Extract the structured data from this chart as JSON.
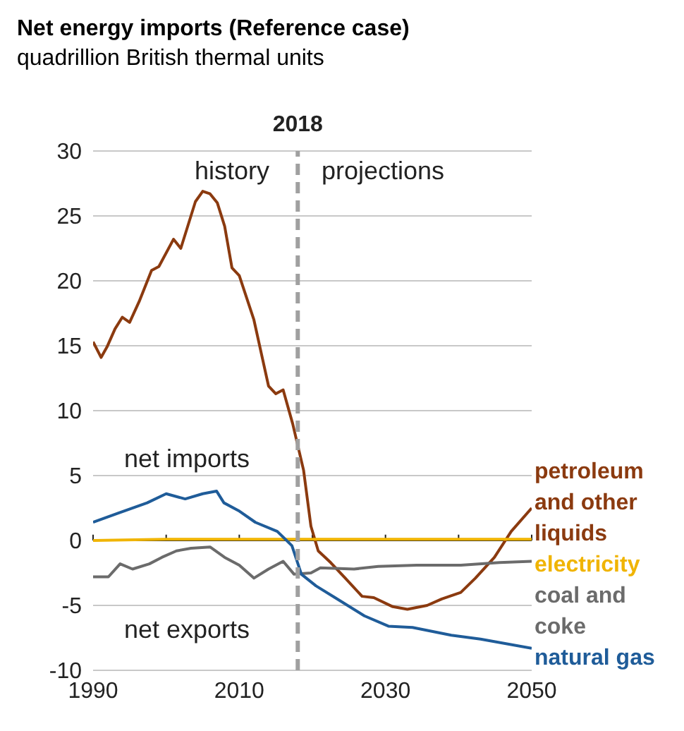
{
  "chart_data": {
    "type": "line",
    "title": "Net energy imports (Reference case)",
    "subtitle": "quadrillion British thermal units",
    "xlim": [
      1990,
      2050
    ],
    "xticks": [
      1990,
      {
        "value": 2000,
        "label": null
      },
      2010,
      {
        "value": 2020,
        "label": null
      },
      2030,
      {
        "value": 2040,
        "label": null
      },
      2050
    ],
    "ylim": [
      -10,
      30
    ],
    "yticks": [
      -10,
      -5,
      0,
      5,
      10,
      15,
      20,
      25,
      30
    ],
    "grid": "y",
    "legend": "right",
    "line_style": "solid",
    "marker": "none",
    "ref_lines": [
      {
        "axis": "x",
        "value": 2018,
        "label": "2018",
        "color": "#a0a0a0",
        "line_style": "dashed"
      }
    ],
    "annotations": [
      "history",
      "projections",
      "net imports",
      "net exports"
    ],
    "series": [
      {
        "name": "petroleum and other liquids",
        "color": "#8b3a0f",
        "x": [
          1990,
          1991.1,
          1991.9,
          1993,
          1994,
          1995,
          1996.3,
          1998,
          1999,
          2001,
          2002,
          2004,
          2005,
          2006,
          2007,
          2008,
          2009,
          2010,
          2012,
          2014,
          2015,
          2016,
          2017.3,
          2018.8,
          2019.8,
          2020.8,
          2022.5,
          2024.5,
          2026.8,
          2028.4,
          2031,
          2033,
          2035.7,
          2037.7,
          2040.3,
          2042.3,
          2044.9,
          2047.2,
          2050
        ],
        "values": [
          15.3,
          14.1,
          14.9,
          16.3,
          17.2,
          16.8,
          18.4,
          20.8,
          21.1,
          23.2,
          22.5,
          26.1,
          26.9,
          26.7,
          26.0,
          24.2,
          21.0,
          20.4,
          17.0,
          11.9,
          11.3,
          11.6,
          9.0,
          5.4,
          1.1,
          -0.8,
          -1.7,
          -2.9,
          -4.3,
          -4.4,
          -5.1,
          -5.3,
          -5.0,
          -4.5,
          -4.0,
          -2.9,
          -1.3,
          0.7,
          2.5
        ]
      },
      {
        "name": "electricity",
        "color": "#f0b400",
        "x": [
          1990,
          2000,
          2010,
          2020,
          2030,
          2040,
          2050
        ],
        "values": [
          0.0,
          0.1,
          0.1,
          0.1,
          0.1,
          0.1,
          0.1
        ]
      },
      {
        "name": "coal and coke",
        "color": "#6b6b6b",
        "x": [
          1990,
          1992.1,
          1993.7,
          1995.4,
          1997.7,
          1999.4,
          2001.4,
          2003.4,
          2006,
          2008,
          2010,
          2012,
          2014,
          2016,
          2017.5,
          2019.8,
          2021.1,
          2025.7,
          2029,
          2034.3,
          2040.3,
          2045.6,
          2050
        ],
        "values": [
          -2.8,
          -2.8,
          -1.8,
          -2.2,
          -1.8,
          -1.3,
          -0.8,
          -0.6,
          -0.5,
          -1.3,
          -1.9,
          -2.9,
          -2.2,
          -1.6,
          -2.6,
          -2.5,
          -2.1,
          -2.2,
          -2.0,
          -1.9,
          -1.9,
          -1.7,
          -1.6
        ]
      },
      {
        "name": "natural gas",
        "color": "#1f5c99",
        "x": [
          1990,
          1993.4,
          1997.4,
          2000,
          2002.6,
          2005,
          2006.9,
          2007.9,
          2009.9,
          2012.2,
          2015.2,
          2017.2,
          2018.5,
          2020.5,
          2023.1,
          2027.1,
          2030.4,
          2033.7,
          2039,
          2043,
          2050
        ],
        "values": [
          1.4,
          2.1,
          2.9,
          3.6,
          3.2,
          3.6,
          3.8,
          2.9,
          2.3,
          1.4,
          0.7,
          -0.4,
          -2.6,
          -3.5,
          -4.4,
          -5.8,
          -6.6,
          -6.7,
          -7.3,
          -7.6,
          -8.3
        ]
      }
    ]
  }
}
